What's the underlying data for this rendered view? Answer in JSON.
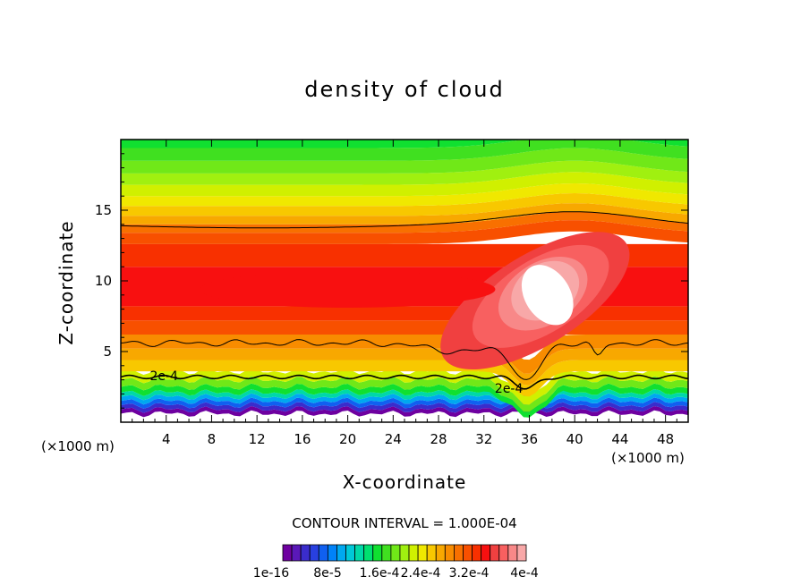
{
  "chart_data": {
    "type": "heatmap",
    "title": "density of cloud",
    "xlabel": "X-coordinate",
    "ylabel": "Z-coordinate",
    "x_unit_label": "(×1000 m)",
    "y_unit_label": "(×1000 m)",
    "xlim": [
      0,
      50
    ],
    "ylim": [
      0,
      20
    ],
    "x_ticks": [
      4,
      8,
      12,
      16,
      20,
      24,
      28,
      32,
      36,
      40,
      44,
      48
    ],
    "y_ticks": [
      5,
      10,
      15
    ],
    "contour_interval": "CONTOUR INTERVAL = 1.000E-04",
    "contour_labels": [
      {
        "text": "2e-4",
        "x": 3.8,
        "z": 3.3
      },
      {
        "text": "2e-4",
        "x": 34.2,
        "z": 2.4
      }
    ],
    "colorbar": {
      "tick_labels": [
        "1e-16",
        "8e-5",
        "1.6e-4",
        "2.4e-4",
        "3.2e-4",
        "4e-4"
      ],
      "colors": [
        "#6e00a0",
        "#5a18b8",
        "#3a2ccc",
        "#2840e0",
        "#1060f0",
        "#0082f8",
        "#00a8f0",
        "#00c8d8",
        "#00d8a8",
        "#00e070",
        "#10e030",
        "#40e020",
        "#70e818",
        "#a0f010",
        "#d0f000",
        "#f0e800",
        "#f8c800",
        "#f8a800",
        "#f88c00",
        "#f87000",
        "#f85000",
        "#f83000",
        "#f81010",
        "#f04040",
        "#f86060",
        "#f88888",
        "#f8a8a8"
      ]
    },
    "description_levels_cloud_max": 0.00045,
    "grid": false
  }
}
